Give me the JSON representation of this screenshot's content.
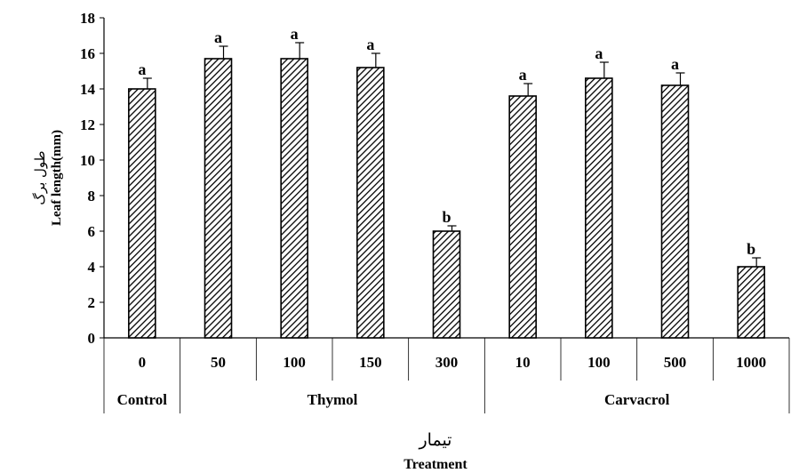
{
  "chart_data": {
    "type": "bar",
    "categories": [
      "0",
      "50",
      "100",
      "150",
      "300",
      "10",
      "100",
      "500",
      "1000"
    ],
    "groups": [
      {
        "label": "Control",
        "count": 1
      },
      {
        "label": "Thymol",
        "count": 4
      },
      {
        "label": "Carvacrol",
        "count": 4
      }
    ],
    "values": [
      14.0,
      15.7,
      15.7,
      15.2,
      6.0,
      13.6,
      14.6,
      14.2,
      4.0
    ],
    "errors": [
      0.6,
      0.7,
      0.9,
      0.8,
      0.3,
      0.7,
      0.9,
      0.7,
      0.5
    ],
    "significance": [
      "a",
      "a",
      "a",
      "a",
      "b",
      "a",
      "a",
      "a",
      "b"
    ],
    "ylabel": "Leaf length(mm)",
    "ylabel_fa": "طول برگ",
    "xlabel": "Treatment",
    "xlabel_fa": "تیمار",
    "ylim": [
      0,
      18
    ],
    "yticks": [
      0,
      2,
      4,
      6,
      8,
      10,
      12,
      14,
      16,
      18
    ],
    "bar_pattern": "diagonal-hatch",
    "bar_color": "#000000"
  }
}
